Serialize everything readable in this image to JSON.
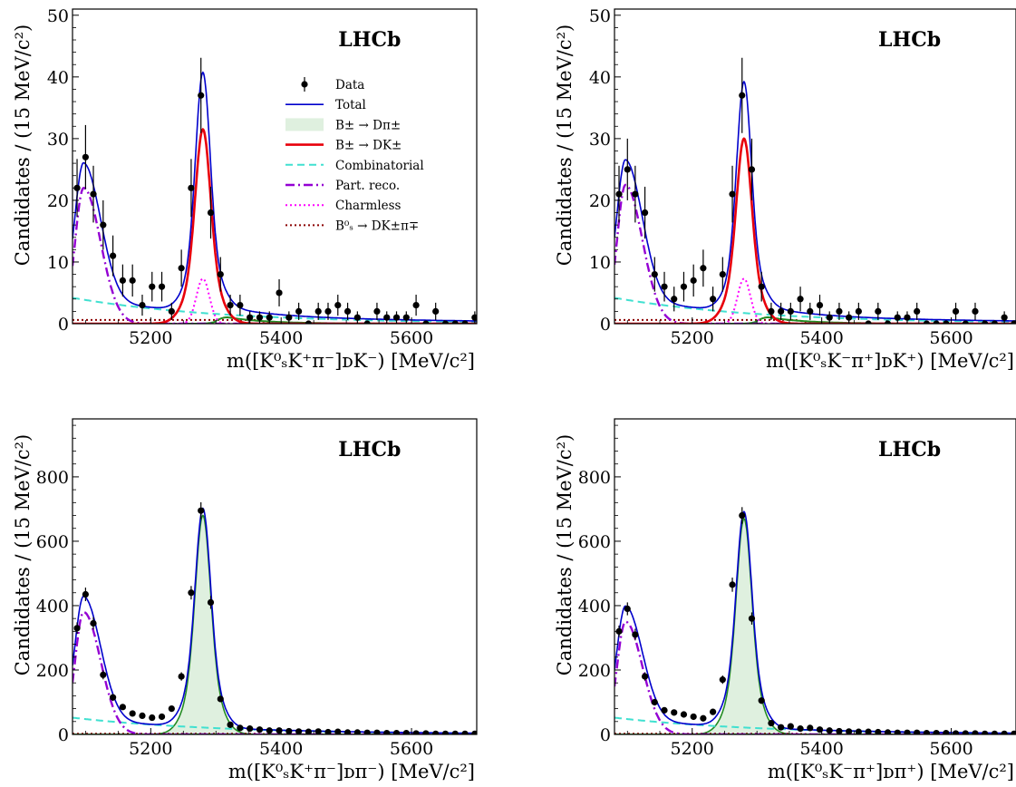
{
  "chart_data": [
    {
      "type": "scatter",
      "brand_label": "LHCb",
      "xlabel": "m([K⁰ₛK⁺π⁻]ᴅK⁻) [MeV/c²]",
      "ylabel": "Candidates / (15 MeV/c²)",
      "xlim": [
        5080,
        5700
      ],
      "ylim": [
        0,
        51
      ],
      "xticks": [
        5200,
        5400,
        5600
      ],
      "yticks": [
        0,
        10,
        20,
        30,
        40,
        50
      ],
      "legend": {
        "placement": "center-right",
        "entries": [
          {
            "label": "Data",
            "style": "errorbar",
            "color": "#000000"
          },
          {
            "label": "Total",
            "style": "solid",
            "color": "#0000cc"
          },
          {
            "label": "B± → Dπ±",
            "style": "fill",
            "color": "#dff0df"
          },
          {
            "label": "B± → DK±",
            "style": "solid-thick",
            "color": "#e8000b"
          },
          {
            "label": "Combinatorial",
            "style": "dashed",
            "color": "#40e0d0"
          },
          {
            "label": "Part. reco.",
            "style": "dashdot",
            "color": "#9400d3"
          },
          {
            "label": "Charmless",
            "style": "dotted",
            "color": "#ff00ff"
          },
          {
            "label": "B⁰ₛ → DK±π∓",
            "style": "dotted",
            "color": "#8b0000"
          }
        ]
      },
      "components": {
        "dk_peak": 31.5,
        "dpi_peak": 0,
        "pr_peak": 22,
        "comb": [
          4.2,
          0.25
        ],
        "charmless_peak": 7.3,
        "bs_level": 0.6,
        "green_peak": 1.0
      },
      "data_points": [
        {
          "x": 5087,
          "y": 22,
          "e": 4.7
        },
        {
          "x": 5100,
          "y": 27,
          "e": 5.2
        },
        {
          "x": 5112,
          "y": 21,
          "e": 4.6
        },
        {
          "x": 5127,
          "y": 16,
          "e": 4.0
        },
        {
          "x": 5142,
          "y": 11,
          "e": 3.3
        },
        {
          "x": 5157,
          "y": 7,
          "e": 2.6
        },
        {
          "x": 5172,
          "y": 7,
          "e": 2.6
        },
        {
          "x": 5187,
          "y": 3,
          "e": 1.7
        },
        {
          "x": 5202,
          "y": 6,
          "e": 2.4
        },
        {
          "x": 5217,
          "y": 6,
          "e": 2.4
        },
        {
          "x": 5232,
          "y": 2,
          "e": 1.4
        },
        {
          "x": 5247,
          "y": 9,
          "e": 3.0
        },
        {
          "x": 5262,
          "y": 22,
          "e": 4.7
        },
        {
          "x": 5277,
          "y": 37,
          "e": 6.1
        },
        {
          "x": 5292,
          "y": 18,
          "e": 4.2
        },
        {
          "x": 5307,
          "y": 8,
          "e": 2.8
        },
        {
          "x": 5322,
          "y": 3,
          "e": 1.7
        },
        {
          "x": 5337,
          "y": 3,
          "e": 1.7
        },
        {
          "x": 5352,
          "y": 1,
          "e": 1.0
        },
        {
          "x": 5367,
          "y": 1,
          "e": 1.0
        },
        {
          "x": 5382,
          "y": 1,
          "e": 1.0
        },
        {
          "x": 5397,
          "y": 5,
          "e": 2.2
        },
        {
          "x": 5412,
          "y": 1,
          "e": 1.0
        },
        {
          "x": 5427,
          "y": 2,
          "e": 1.4
        },
        {
          "x": 5442,
          "y": 0,
          "e": 0
        },
        {
          "x": 5457,
          "y": 2,
          "e": 1.4
        },
        {
          "x": 5472,
          "y": 2,
          "e": 1.4
        },
        {
          "x": 5487,
          "y": 3,
          "e": 1.7
        },
        {
          "x": 5502,
          "y": 2,
          "e": 1.4
        },
        {
          "x": 5517,
          "y": 1,
          "e": 1.0
        },
        {
          "x": 5532,
          "y": 0,
          "e": 0
        },
        {
          "x": 5547,
          "y": 2,
          "e": 1.4
        },
        {
          "x": 5562,
          "y": 1,
          "e": 1.0
        },
        {
          "x": 5577,
          "y": 1,
          "e": 1.0
        },
        {
          "x": 5592,
          "y": 1,
          "e": 1.0
        },
        {
          "x": 5607,
          "y": 3,
          "e": 1.7
        },
        {
          "x": 5622,
          "y": 0,
          "e": 0
        },
        {
          "x": 5637,
          "y": 2,
          "e": 1.4
        },
        {
          "x": 5652,
          "y": 0,
          "e": 0
        },
        {
          "x": 5667,
          "y": 0,
          "e": 0
        },
        {
          "x": 5682,
          "y": 0,
          "e": 0
        },
        {
          "x": 5697,
          "y": 1,
          "e": 1.0
        }
      ]
    },
    {
      "type": "scatter",
      "brand_label": "LHCb",
      "xlabel": "m([K⁰ₛK⁻π⁺]ᴅK⁺) [MeV/c²]",
      "ylabel": "Candidates / (15 MeV/c²)",
      "xlim": [
        5080,
        5700
      ],
      "ylim": [
        0,
        51
      ],
      "xticks": [
        5200,
        5400,
        5600
      ],
      "yticks": [
        0,
        10,
        20,
        30,
        40,
        50
      ],
      "components": {
        "dk_peak": 30,
        "dpi_peak": 0,
        "pr_peak": 22.5,
        "comb": [
          4.2,
          0.25
        ],
        "charmless_peak": 7.3,
        "bs_level": 0.6,
        "green_peak": 1.0
      },
      "data_points": [
        {
          "x": 5087,
          "y": 21,
          "e": 4.6
        },
        {
          "x": 5100,
          "y": 25,
          "e": 5.0
        },
        {
          "x": 5112,
          "y": 21,
          "e": 4.6
        },
        {
          "x": 5127,
          "y": 18,
          "e": 4.2
        },
        {
          "x": 5142,
          "y": 8,
          "e": 2.8
        },
        {
          "x": 5157,
          "y": 6,
          "e": 2.4
        },
        {
          "x": 5172,
          "y": 4,
          "e": 2.0
        },
        {
          "x": 5187,
          "y": 6,
          "e": 2.4
        },
        {
          "x": 5202,
          "y": 7,
          "e": 2.6
        },
        {
          "x": 5217,
          "y": 9,
          "e": 3.0
        },
        {
          "x": 5232,
          "y": 4,
          "e": 2.0
        },
        {
          "x": 5247,
          "y": 8,
          "e": 2.8
        },
        {
          "x": 5262,
          "y": 21,
          "e": 4.6
        },
        {
          "x": 5277,
          "y": 37,
          "e": 6.1
        },
        {
          "x": 5292,
          "y": 25,
          "e": 5.0
        },
        {
          "x": 5307,
          "y": 6,
          "e": 2.4
        },
        {
          "x": 5322,
          "y": 2,
          "e": 1.4
        },
        {
          "x": 5337,
          "y": 2,
          "e": 1.4
        },
        {
          "x": 5352,
          "y": 2,
          "e": 1.4
        },
        {
          "x": 5367,
          "y": 4,
          "e": 2.0
        },
        {
          "x": 5382,
          "y": 2,
          "e": 1.4
        },
        {
          "x": 5397,
          "y": 3,
          "e": 1.7
        },
        {
          "x": 5412,
          "y": 1,
          "e": 1.0
        },
        {
          "x": 5427,
          "y": 2,
          "e": 1.4
        },
        {
          "x": 5442,
          "y": 1,
          "e": 1.0
        },
        {
          "x": 5457,
          "y": 2,
          "e": 1.4
        },
        {
          "x": 5472,
          "y": 0,
          "e": 0
        },
        {
          "x": 5487,
          "y": 2,
          "e": 1.4
        },
        {
          "x": 5502,
          "y": 0,
          "e": 0
        },
        {
          "x": 5517,
          "y": 1,
          "e": 1.0
        },
        {
          "x": 5532,
          "y": 1,
          "e": 1.0
        },
        {
          "x": 5547,
          "y": 2,
          "e": 1.4
        },
        {
          "x": 5562,
          "y": 0,
          "e": 0
        },
        {
          "x": 5577,
          "y": 0,
          "e": 0
        },
        {
          "x": 5592,
          "y": 0,
          "e": 0
        },
        {
          "x": 5607,
          "y": 2,
          "e": 1.4
        },
        {
          "x": 5622,
          "y": 0,
          "e": 0
        },
        {
          "x": 5637,
          "y": 2,
          "e": 1.4
        },
        {
          "x": 5652,
          "y": 0,
          "e": 0
        },
        {
          "x": 5667,
          "y": 0,
          "e": 0
        },
        {
          "x": 5682,
          "y": 1,
          "e": 1.0
        },
        {
          "x": 5697,
          "y": 0,
          "e": 0
        }
      ]
    },
    {
      "type": "scatter",
      "brand_label": "LHCb",
      "xlabel": "m([K⁰ₛK⁺π⁻]ᴅπ⁻) [MeV/c²]",
      "ylabel": "Candidates / (15 MeV/c²)",
      "xlim": [
        5080,
        5700
      ],
      "ylim": [
        0,
        980
      ],
      "xticks": [
        5200,
        5400,
        5600
      ],
      "yticks": [
        0,
        200,
        400,
        600,
        800
      ],
      "components": {
        "dk_peak": 0,
        "dpi_peak": 680,
        "pr_peak": 380,
        "comb": [
          52,
          0.25
        ],
        "charmless_peak": 0,
        "bs_level": 2,
        "green_peak": 0
      },
      "data_points": [
        {
          "x": 5087,
          "y": 330,
          "e": 18
        },
        {
          "x": 5100,
          "y": 435,
          "e": 21
        },
        {
          "x": 5112,
          "y": 345,
          "e": 19
        },
        {
          "x": 5127,
          "y": 185,
          "e": 14
        },
        {
          "x": 5142,
          "y": 115,
          "e": 11
        },
        {
          "x": 5157,
          "y": 85,
          "e": 9
        },
        {
          "x": 5172,
          "y": 65,
          "e": 8
        },
        {
          "x": 5187,
          "y": 58,
          "e": 8
        },
        {
          "x": 5202,
          "y": 52,
          "e": 7
        },
        {
          "x": 5217,
          "y": 55,
          "e": 7
        },
        {
          "x": 5232,
          "y": 80,
          "e": 9
        },
        {
          "x": 5247,
          "y": 180,
          "e": 13
        },
        {
          "x": 5262,
          "y": 440,
          "e": 21
        },
        {
          "x": 5277,
          "y": 695,
          "e": 26
        },
        {
          "x": 5292,
          "y": 410,
          "e": 20
        },
        {
          "x": 5307,
          "y": 110,
          "e": 10
        },
        {
          "x": 5322,
          "y": 30,
          "e": 5
        },
        {
          "x": 5337,
          "y": 20,
          "e": 4
        },
        {
          "x": 5352,
          "y": 18,
          "e": 4
        },
        {
          "x": 5367,
          "y": 15,
          "e": 4
        },
        {
          "x": 5382,
          "y": 12,
          "e": 3
        },
        {
          "x": 5397,
          "y": 12,
          "e": 3
        },
        {
          "x": 5412,
          "y": 10,
          "e": 3
        },
        {
          "x": 5427,
          "y": 9,
          "e": 3
        },
        {
          "x": 5442,
          "y": 8,
          "e": 3
        },
        {
          "x": 5457,
          "y": 9,
          "e": 3
        },
        {
          "x": 5472,
          "y": 7,
          "e": 3
        },
        {
          "x": 5487,
          "y": 8,
          "e": 3
        },
        {
          "x": 5502,
          "y": 6,
          "e": 2
        },
        {
          "x": 5517,
          "y": 6,
          "e": 2
        },
        {
          "x": 5532,
          "y": 5,
          "e": 2
        },
        {
          "x": 5547,
          "y": 5,
          "e": 2
        },
        {
          "x": 5562,
          "y": 4,
          "e": 2
        },
        {
          "x": 5577,
          "y": 4,
          "e": 2
        },
        {
          "x": 5592,
          "y": 4,
          "e": 2
        },
        {
          "x": 5607,
          "y": 3,
          "e": 2
        },
        {
          "x": 5622,
          "y": 3,
          "e": 2
        },
        {
          "x": 5637,
          "y": 2,
          "e": 1
        },
        {
          "x": 5652,
          "y": 2,
          "e": 1
        },
        {
          "x": 5667,
          "y": 2,
          "e": 1
        },
        {
          "x": 5682,
          "y": 2,
          "e": 1
        },
        {
          "x": 5697,
          "y": 2,
          "e": 1
        }
      ]
    },
    {
      "type": "scatter",
      "brand_label": "LHCb",
      "xlabel": "m([K⁰ₛK⁻π⁺]ᴅπ⁺) [MeV/c²]",
      "ylabel": "Candidates / (15 MeV/c²)",
      "xlim": [
        5080,
        5700
      ],
      "ylim": [
        0,
        980
      ],
      "xticks": [
        5200,
        5400,
        5600
      ],
      "yticks": [
        0,
        200,
        400,
        600,
        800
      ],
      "components": {
        "dk_peak": 0,
        "dpi_peak": 670,
        "pr_peak": 350,
        "comb": [
          52,
          0.25
        ],
        "charmless_peak": 0,
        "bs_level": 2,
        "green_peak": 0
      },
      "data_points": [
        {
          "x": 5087,
          "y": 320,
          "e": 18
        },
        {
          "x": 5100,
          "y": 390,
          "e": 20
        },
        {
          "x": 5112,
          "y": 310,
          "e": 18
        },
        {
          "x": 5127,
          "y": 180,
          "e": 13
        },
        {
          "x": 5142,
          "y": 100,
          "e": 10
        },
        {
          "x": 5157,
          "y": 75,
          "e": 9
        },
        {
          "x": 5172,
          "y": 68,
          "e": 8
        },
        {
          "x": 5187,
          "y": 62,
          "e": 8
        },
        {
          "x": 5202,
          "y": 55,
          "e": 7
        },
        {
          "x": 5217,
          "y": 50,
          "e": 7
        },
        {
          "x": 5232,
          "y": 70,
          "e": 8
        },
        {
          "x": 5247,
          "y": 170,
          "e": 13
        },
        {
          "x": 5262,
          "y": 465,
          "e": 22
        },
        {
          "x": 5277,
          "y": 680,
          "e": 26
        },
        {
          "x": 5292,
          "y": 360,
          "e": 19
        },
        {
          "x": 5307,
          "y": 105,
          "e": 10
        },
        {
          "x": 5322,
          "y": 35,
          "e": 6
        },
        {
          "x": 5337,
          "y": 22,
          "e": 5
        },
        {
          "x": 5352,
          "y": 25,
          "e": 5
        },
        {
          "x": 5367,
          "y": 18,
          "e": 4
        },
        {
          "x": 5382,
          "y": 20,
          "e": 4
        },
        {
          "x": 5397,
          "y": 15,
          "e": 4
        },
        {
          "x": 5412,
          "y": 12,
          "e": 3
        },
        {
          "x": 5427,
          "y": 10,
          "e": 3
        },
        {
          "x": 5442,
          "y": 9,
          "e": 3
        },
        {
          "x": 5457,
          "y": 8,
          "e": 3
        },
        {
          "x": 5472,
          "y": 8,
          "e": 3
        },
        {
          "x": 5487,
          "y": 7,
          "e": 3
        },
        {
          "x": 5502,
          "y": 6,
          "e": 2
        },
        {
          "x": 5517,
          "y": 5,
          "e": 2
        },
        {
          "x": 5532,
          "y": 5,
          "e": 2
        },
        {
          "x": 5547,
          "y": 5,
          "e": 2
        },
        {
          "x": 5562,
          "y": 4,
          "e": 2
        },
        {
          "x": 5577,
          "y": 4,
          "e": 2
        },
        {
          "x": 5592,
          "y": 4,
          "e": 2
        },
        {
          "x": 5607,
          "y": 3,
          "e": 2
        },
        {
          "x": 5622,
          "y": 3,
          "e": 2
        },
        {
          "x": 5637,
          "y": 3,
          "e": 2
        },
        {
          "x": 5652,
          "y": 2,
          "e": 1
        },
        {
          "x": 5667,
          "y": 2,
          "e": 1
        },
        {
          "x": 5682,
          "y": 2,
          "e": 1
        },
        {
          "x": 5697,
          "y": 2,
          "e": 1
        }
      ]
    }
  ]
}
